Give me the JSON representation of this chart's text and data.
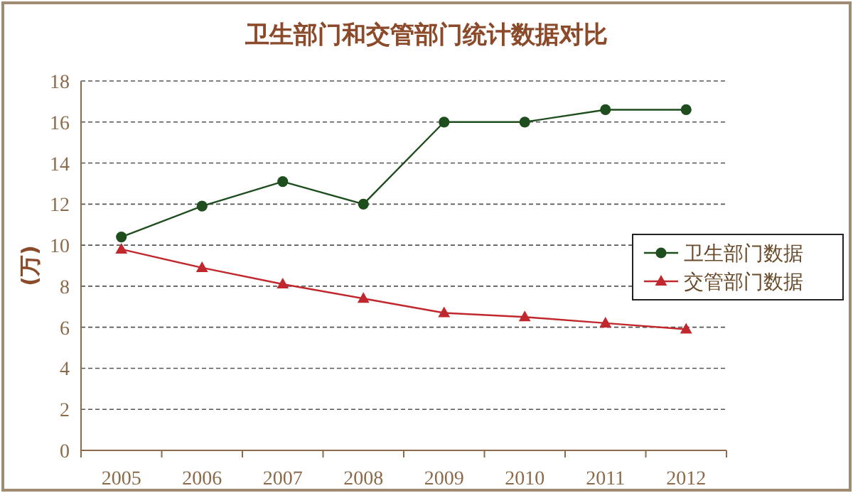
{
  "chart_data": {
    "type": "line",
    "title": "卫生部门和交管部门统计数据对比",
    "ylabel": "(万)",
    "categories": [
      "2005",
      "2006",
      "2007",
      "2008",
      "2009",
      "2010",
      "2011",
      "2012"
    ],
    "series": [
      {
        "name": "卫生部门数据",
        "color": "#1e4d1e",
        "marker": "circle",
        "values": [
          10.4,
          11.9,
          13.1,
          12.0,
          16.0,
          16.0,
          16.6,
          16.6
        ]
      },
      {
        "name": "交管部门数据",
        "color": "#c0282d",
        "marker": "triangle",
        "values": [
          9.8,
          8.9,
          8.1,
          7.4,
          6.7,
          6.5,
          6.2,
          5.9
        ]
      }
    ],
    "ylim": [
      0,
      18
    ],
    "yticks": [
      0,
      2,
      4,
      6,
      8,
      10,
      12,
      14,
      16,
      18
    ],
    "grid": "y",
    "legend": "right",
    "line_style": "solid"
  }
}
